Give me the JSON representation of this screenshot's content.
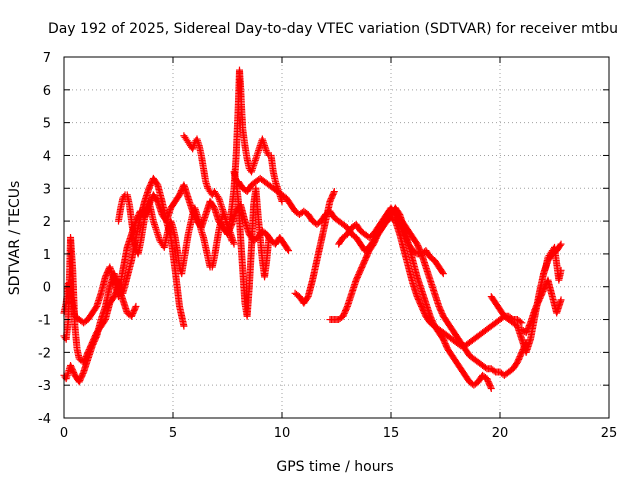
{
  "chart_data": {
    "type": "scatter",
    "title": "Day 192 of 2025, Sidereal Day-to-day VTEC variation (SDTVAR) for receiver mtbu",
    "xlabel": "GPS time / hours",
    "ylabel": "SDTVAR / TECUs",
    "xlim": [
      0,
      25
    ],
    "ylim": [
      -4,
      7
    ],
    "xticks": [
      0,
      5,
      10,
      15,
      20,
      25
    ],
    "yticks": [
      -4,
      -3,
      -2,
      -1,
      0,
      1,
      2,
      3,
      4,
      5,
      6,
      7
    ],
    "grid": true,
    "marker": "+",
    "color": "#ff0000",
    "series": [
      {
        "name": "s1",
        "x": [
          0.0,
          0.1,
          0.2,
          0.3,
          0.4,
          0.5,
          0.7,
          0.9,
          1.1,
          1.3,
          1.5,
          1.7,
          1.9,
          2.1,
          2.3,
          2.5,
          2.7,
          2.9,
          3.1,
          3.3,
          3.5,
          3.7,
          3.9,
          4.1,
          4.3,
          4.5,
          4.7,
          4.9,
          5.1,
          5.3,
          5.5,
          5.7,
          5.9,
          6.1,
          6.3,
          6.5,
          6.7,
          6.9,
          7.1,
          7.3,
          7.5,
          7.7,
          7.9,
          8.1,
          8.3,
          8.5,
          8.7,
          8.9,
          9.1,
          9.3,
          9.5,
          9.7,
          9.9,
          10.1,
          10.3
        ],
        "y": [
          -0.8,
          -0.5,
          0.1,
          -0.2,
          -0.6,
          -0.9,
          -1.0,
          -1.1,
          -1.0,
          -0.8,
          -0.6,
          -0.2,
          0.3,
          0.6,
          0.2,
          -0.3,
          0.5,
          1.2,
          1.6,
          2.0,
          2.3,
          2.1,
          2.5,
          2.8,
          2.6,
          2.2,
          2.0,
          2.4,
          2.6,
          2.8,
          3.1,
          2.7,
          2.3,
          2.0,
          1.8,
          2.2,
          2.6,
          2.4,
          2.0,
          1.8,
          1.6,
          1.9,
          2.3,
          2.5,
          2.0,
          1.6,
          1.4,
          1.5,
          1.7,
          1.6,
          1.4,
          1.3,
          1.5,
          1.3,
          1.1
        ]
      },
      {
        "name": "s2",
        "x": [
          0.0,
          0.1,
          0.2,
          0.3,
          0.5,
          0.7,
          0.9,
          1.1,
          1.3,
          1.5,
          1.7,
          1.9,
          2.1,
          2.3,
          2.5,
          2.7,
          2.9,
          3.1,
          3.3,
          3.5,
          3.7,
          3.9,
          4.1,
          4.3,
          4.5,
          4.7,
          4.9,
          5.1,
          5.3,
          5.5
        ],
        "y": [
          -2.7,
          -2.8,
          -2.6,
          -2.4,
          -2.7,
          -2.9,
          -2.6,
          -2.2,
          -1.8,
          -1.5,
          -1.0,
          -0.6,
          0.0,
          0.4,
          0.1,
          -0.2,
          0.3,
          0.8,
          1.5,
          2.1,
          2.6,
          3.0,
          3.3,
          3.1,
          2.6,
          2.0,
          1.5,
          0.5,
          -0.6,
          -1.2
        ]
      },
      {
        "name": "s3",
        "x": [
          0.0,
          0.1,
          0.2,
          0.3,
          0.4,
          0.5,
          0.6,
          0.7,
          0.9,
          1.1,
          1.3,
          1.5,
          1.7,
          1.9,
          2.1,
          2.3,
          2.5,
          2.7,
          2.9,
          3.1,
          3.3
        ],
        "y": [
          -1.5,
          -1.6,
          -1.0,
          1.5,
          0.5,
          -1.2,
          -1.9,
          -2.2,
          -2.3,
          -2.0,
          -1.7,
          -1.4,
          -1.2,
          -1.0,
          -0.5,
          -0.3,
          0.0,
          -0.4,
          -0.8,
          -0.9,
          -0.6
        ]
      },
      {
        "name": "s4",
        "x": [
          2.5,
          2.6,
          2.7,
          2.8,
          2.9,
          3.0,
          3.1,
          3.2,
          3.3,
          3.4,
          3.5,
          3.6,
          3.7,
          3.8,
          3.9,
          4.0,
          4.1,
          4.2,
          4.3,
          4.4,
          4.5,
          4.6,
          4.7,
          4.8,
          4.9,
          5.0,
          5.1,
          5.2,
          5.3,
          5.4,
          5.5,
          5.6,
          5.7,
          5.8,
          5.9,
          6.0,
          6.1,
          6.2,
          6.3,
          6.4,
          6.5,
          6.6,
          6.7,
          6.8,
          6.9,
          7.0,
          7.1,
          7.2,
          7.3,
          7.4,
          7.5,
          7.6,
          7.7,
          7.8
        ],
        "y": [
          2.0,
          2.4,
          2.7,
          2.8,
          2.8,
          2.5,
          2.0,
          1.5,
          1.2,
          1.0,
          1.3,
          1.7,
          2.1,
          2.4,
          2.6,
          2.3,
          2.0,
          1.8,
          1.6,
          1.4,
          1.3,
          1.2,
          1.5,
          1.8,
          2.0,
          1.8,
          1.5,
          1.1,
          0.6,
          0.4,
          0.8,
          1.2,
          1.6,
          1.9,
          2.2,
          2.4,
          2.2,
          2.0,
          1.7,
          1.5,
          1.2,
          0.9,
          0.6,
          0.6,
          0.9,
          1.3,
          1.7,
          2.0,
          2.2,
          2.1,
          1.9,
          1.7,
          1.5,
          1.3
        ]
      },
      {
        "name": "s5",
        "x": [
          5.5,
          5.6,
          5.7,
          5.8,
          5.9,
          6.0,
          6.1,
          6.2,
          6.3,
          6.4,
          6.5,
          6.6,
          6.7,
          6.8,
          6.9,
          7.0,
          7.1,
          7.2,
          7.3,
          7.4,
          7.5,
          7.6,
          7.7
        ],
        "y": [
          4.6,
          4.5,
          4.4,
          4.3,
          4.2,
          4.4,
          4.5,
          4.3,
          4.0,
          3.6,
          3.2,
          3.0,
          2.9,
          2.8,
          2.9,
          2.8,
          2.7,
          2.5,
          2.3,
          2.1,
          1.8,
          1.6,
          1.4
        ]
      },
      {
        "name": "s6",
        "x": [
          7.6,
          7.7,
          7.8,
          7.9,
          8.0,
          8.05,
          8.1,
          8.15,
          8.2,
          8.3,
          8.4,
          8.5,
          8.6,
          8.7,
          8.8,
          8.9,
          9.0,
          9.1,
          9.2,
          9.3,
          9.4,
          9.5,
          9.6,
          9.7,
          9.8,
          9.9,
          10.0
        ],
        "y": [
          2.0,
          2.4,
          3.0,
          4.0,
          5.6,
          6.6,
          6.1,
          5.4,
          4.8,
          4.3,
          3.9,
          3.6,
          3.5,
          3.7,
          3.9,
          4.1,
          4.3,
          4.5,
          4.3,
          4.1,
          4.0,
          4.0,
          3.5,
          3.2,
          3.0,
          2.8,
          2.6
        ]
      },
      {
        "name": "s7",
        "x": [
          7.8,
          7.9,
          8.0,
          8.1,
          8.2,
          8.3,
          8.4,
          8.5,
          8.6,
          8.7,
          8.8,
          8.9,
          9.0,
          9.1,
          9.2,
          9.3,
          9.4
        ],
        "y": [
          3.5,
          3.2,
          2.6,
          1.5,
          0.5,
          -0.5,
          -0.9,
          0.0,
          1.2,
          2.5,
          3.0,
          2.2,
          1.5,
          0.8,
          0.3,
          0.8,
          1.5
        ]
      },
      {
        "name": "s8",
        "x": [
          8.0,
          8.2,
          8.4,
          8.6,
          8.8,
          9.0,
          9.2,
          9.4,
          9.6,
          9.8,
          10.0,
          10.2,
          10.4,
          10.6,
          10.8,
          11.0,
          11.2,
          11.4,
          11.6,
          11.8,
          12.0,
          12.2,
          12.4,
          12.6,
          12.8,
          13.0,
          13.2,
          13.4,
          13.6,
          13.8,
          14.0,
          14.2,
          14.4,
          14.6,
          14.8,
          15.0,
          15.2,
          15.4,
          15.6,
          15.8,
          16.0,
          16.2,
          16.4,
          16.6,
          16.8,
          17.0,
          17.2,
          17.4,
          17.6,
          17.8,
          18.0,
          18.2,
          18.4,
          18.6,
          18.8,
          19.0,
          19.2,
          19.4,
          19.6
        ],
        "y": [
          3.2,
          3.0,
          2.9,
          3.1,
          3.2,
          3.3,
          3.2,
          3.1,
          3.0,
          2.9,
          2.8,
          2.7,
          2.5,
          2.3,
          2.2,
          2.3,
          2.2,
          2.0,
          1.9,
          2.0,
          2.2,
          2.3,
          2.1,
          2.0,
          1.9,
          1.8,
          1.6,
          1.5,
          1.3,
          1.1,
          1.2,
          1.4,
          1.6,
          1.8,
          2.0,
          2.2,
          2.4,
          2.2,
          1.8,
          1.3,
          0.8,
          0.3,
          -0.1,
          -0.5,
          -0.9,
          -1.2,
          -1.4,
          -1.6,
          -1.9,
          -2.1,
          -2.3,
          -2.5,
          -2.7,
          -2.9,
          -3.0,
          -2.9,
          -2.7,
          -2.8,
          -3.1
        ]
      },
      {
        "name": "s9",
        "x": [
          10.6,
          10.8,
          11.0,
          11.2,
          11.4,
          11.6,
          11.8,
          12.0,
          12.2,
          12.4
        ],
        "y": [
          -0.2,
          -0.3,
          -0.5,
          -0.3,
          0.2,
          0.8,
          1.4,
          2.0,
          2.6,
          2.9
        ]
      },
      {
        "name": "s10",
        "x": [
          12.2,
          12.4,
          12.6,
          12.8,
          13.0,
          13.2,
          13.4,
          13.6,
          13.8,
          14.0,
          14.2,
          14.4,
          14.6,
          14.8,
          15.0,
          15.2,
          15.4,
          15.6,
          15.8,
          16.0,
          16.2,
          16.4,
          16.6,
          16.8,
          17.0,
          17.2,
          17.4,
          17.6,
          17.8,
          18.0,
          18.2,
          18.4,
          18.6,
          18.8,
          19.0,
          19.2,
          19.4,
          19.6,
          19.8,
          20.0,
          20.2,
          20.4,
          20.6,
          20.8,
          21.0
        ],
        "y": [
          -1.0,
          -1.0,
          -1.0,
          -0.9,
          -0.6,
          -0.2,
          0.2,
          0.5,
          0.8,
          1.1,
          1.3,
          1.6,
          1.8,
          2.0,
          2.1,
          2.0,
          1.6,
          1.1,
          0.6,
          0.1,
          -0.3,
          -0.6,
          -0.9,
          -1.1,
          -1.2,
          -1.3,
          -1.4,
          -1.5,
          -1.6,
          -1.7,
          -1.8,
          -1.8,
          -1.7,
          -1.6,
          -1.5,
          -1.4,
          -1.3,
          -1.2,
          -1.1,
          -1.0,
          -0.9,
          -0.9,
          -1.0,
          -1.0,
          -1.1
        ]
      },
      {
        "name": "s11",
        "x": [
          12.6,
          12.8,
          13.0,
          13.2,
          13.4,
          13.6,
          13.8,
          14.0,
          14.2,
          14.4,
          14.6,
          14.8,
          15.0,
          15.2,
          15.4,
          15.6,
          15.8,
          16.0,
          16.2,
          16.4,
          16.6,
          16.8,
          17.0,
          17.2,
          17.4
        ],
        "y": [
          1.3,
          1.5,
          1.6,
          1.8,
          1.9,
          1.7,
          1.6,
          1.5,
          1.6,
          1.8,
          2.0,
          2.2,
          2.4,
          2.2,
          1.9,
          1.6,
          1.3,
          1.1,
          1.0,
          1.0,
          1.1,
          0.9,
          0.8,
          0.6,
          0.4
        ]
      },
      {
        "name": "s12",
        "x": [
          15.2,
          15.4,
          15.6,
          15.8,
          16.0,
          16.2,
          16.4,
          16.6,
          16.8,
          17.0,
          17.2,
          17.4,
          17.6,
          17.8,
          18.0,
          18.2,
          18.4,
          18.6,
          18.8,
          19.0,
          19.2,
          19.4,
          19.6,
          19.8,
          20.0,
          20.2,
          20.4,
          20.6,
          20.8,
          21.0,
          21.2
        ],
        "y": [
          2.3,
          2.1,
          1.9,
          1.7,
          1.5,
          1.3,
          1.0,
          0.6,
          0.2,
          -0.2,
          -0.6,
          -0.9,
          -1.1,
          -1.3,
          -1.5,
          -1.7,
          -1.9,
          -2.1,
          -2.2,
          -2.3,
          -2.4,
          -2.5,
          -2.5,
          -2.6,
          -2.6,
          -2.7,
          -2.6,
          -2.5,
          -2.3,
          -2.0,
          -1.7
        ]
      },
      {
        "name": "s13",
        "x": [
          19.6,
          19.8,
          20.0,
          20.2,
          20.4,
          20.6,
          20.8,
          21.0,
          21.2,
          21.4,
          21.6,
          21.8,
          22.0,
          22.2,
          22.4,
          22.6,
          22.8
        ],
        "y": [
          -0.3,
          -0.5,
          -0.7,
          -0.9,
          -1.0,
          -1.1,
          -1.2,
          -1.6,
          -2.0,
          -1.6,
          -0.9,
          -0.2,
          0.4,
          0.8,
          1.0,
          1.1,
          1.3
        ]
      },
      {
        "name": "s14",
        "x": [
          21.0,
          21.2,
          21.4,
          21.6,
          21.8,
          22.0,
          22.2,
          22.4,
          22.6,
          22.8
        ],
        "y": [
          -1.3,
          -1.4,
          -1.1,
          -0.7,
          -0.4,
          -0.1,
          0.2,
          -0.3,
          -0.8,
          -0.4
        ]
      },
      {
        "name": "s15",
        "x": [
          22.0,
          22.1,
          22.2,
          22.3,
          22.4,
          22.5,
          22.6,
          22.7,
          22.8
        ],
        "y": [
          0.4,
          0.6,
          0.9,
          1.0,
          1.1,
          1.2,
          0.7,
          0.2,
          0.5
        ]
      }
    ]
  }
}
